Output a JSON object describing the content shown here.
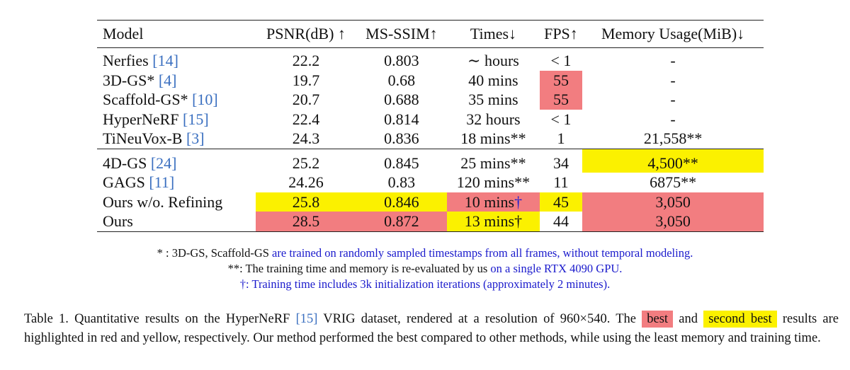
{
  "table": {
    "headers": [
      "Model",
      "PSNR(dB) ↑",
      "MS-SSIM↑",
      "Times↓",
      "FPS↑",
      "Memory Usage(MiB)↓"
    ],
    "group1": [
      {
        "model": "Nerfies ",
        "ref": "[14]",
        "psnr": "22.2",
        "msssim": "0.803",
        "times": "∼ hours",
        "fps": "< 1",
        "memory": "-"
      },
      {
        "model": "3D-GS* ",
        "ref": "[4]",
        "psnr": "19.7",
        "msssim": "0.68",
        "times": "40 mins",
        "fps": "55",
        "memory": "-"
      },
      {
        "model": "Scaffold-GS* ",
        "ref": "[10]",
        "psnr": "20.7",
        "msssim": "0.688",
        "times": "35 mins",
        "fps": "55",
        "memory": "-"
      },
      {
        "model": "HyperNeRF ",
        "ref": "[15]",
        "psnr": "22.4",
        "msssim": "0.814",
        "times": "32 hours",
        "fps": "< 1",
        "memory": "-"
      },
      {
        "model": "TiNeuVox-B ",
        "ref": "[3]",
        "psnr": "24.3",
        "msssim": "0.836",
        "times": "18 mins**",
        "fps": "1",
        "memory": "21,558**"
      }
    ],
    "group2": [
      {
        "model": "4D-GS ",
        "ref": "[24]",
        "psnr": "25.2",
        "msssim": "0.845",
        "times": "25 mins**",
        "fps": "34",
        "memory": "4,500**"
      },
      {
        "model": "GAGS ",
        "ref": "[11]",
        "psnr": "24.26",
        "msssim": "0.83",
        "times": "120 mins**",
        "fps": "11",
        "memory": "6875**"
      },
      {
        "model": "Ours w/o. Refining",
        "ref": "",
        "psnr": "25.8",
        "msssim": "0.846",
        "times": "10 mins",
        "times_mark": "†",
        "fps": "45",
        "memory": "3,050"
      },
      {
        "model": "Ours",
        "ref": "",
        "psnr": "28.5",
        "msssim": "0.872",
        "times": "13 mins",
        "times_mark": "†",
        "fps": "44",
        "memory": "3,050"
      }
    ]
  },
  "notes": {
    "n1_prefix": "* : 3D-GS, Scaffold-GS ",
    "n1_blue": "are trained on randomly sampled timestamps from all frames, without temporal modeling.",
    "n2_prefix": "**: The training time and memory is re-evaluated by us ",
    "n2_blue": "on a single RTX 4090 GPU.",
    "n3_blue": "†: Training time includes 3k initialization iterations (approximately 2 minutes)."
  },
  "caption": {
    "part1": "Table 1. Quantitative results on the HyperNeRF ",
    "ref": "[15]",
    "part2": " VRIG dataset, rendered at a resolution of 960×540. The ",
    "best": "best",
    "and": " and ",
    "second": "second best",
    "part3": " results are highlighted in red and yellow, respectively. Our method performed the best compared to other methods, while using the least memory and training time."
  },
  "colors": {
    "best": "#f27d80",
    "second": "#fbf100",
    "citation": "#3a6fc0",
    "note_blue": "#1a1acc"
  }
}
